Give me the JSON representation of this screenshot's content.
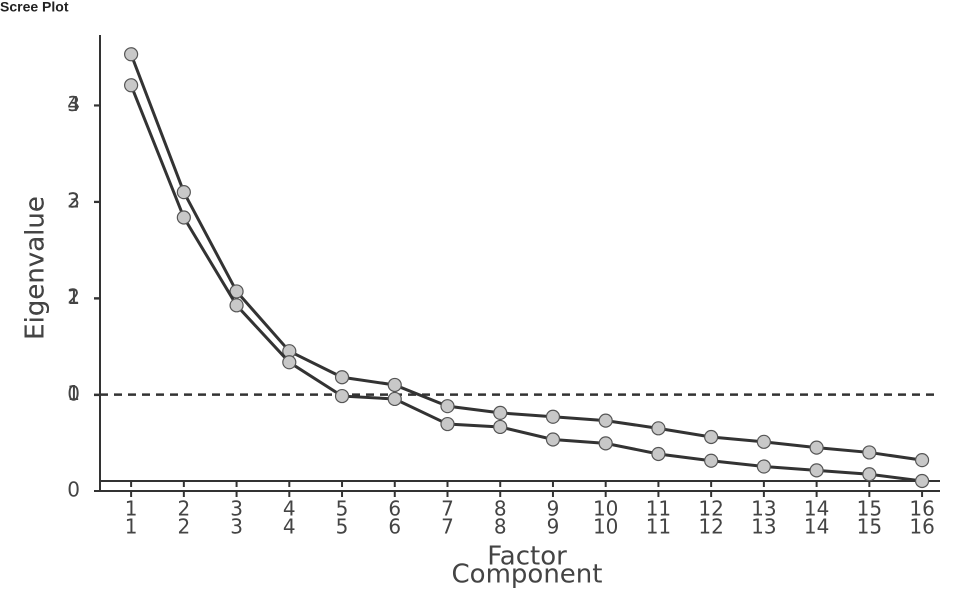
{
  "chart_data": [
    {
      "type": "line",
      "title": "Scree Plot",
      "x_label": "Component",
      "y_label": "Eigenvalue",
      "x": [
        1,
        2,
        3,
        4,
        5,
        6,
        7,
        8,
        9,
        10,
        11,
        12,
        13,
        14,
        15,
        16
      ],
      "series": [
        {
          "name": "Eigenvalue",
          "color": "#333333",
          "marker_color": "#c8c8c8",
          "values": [
            4.53,
            3.1,
            2.07,
            1.45,
            1.18,
            1.1,
            0.88,
            0.81,
            0.77,
            0.73,
            0.65,
            0.56,
            0.51,
            0.45,
            0.4,
            0.32
          ]
        }
      ],
      "xlim": [
        0.41,
        16.34
      ],
      "xticks": [
        1,
        2,
        3,
        4,
        5,
        6,
        7,
        8,
        9,
        10,
        11,
        12,
        13,
        14,
        15,
        16
      ],
      "ylim": [
        0,
        4.73
      ],
      "yticks": [
        0,
        1,
        2,
        3,
        4
      ],
      "hline": 1
    },
    {
      "type": "line",
      "x_label": "Factor",
      "y_label": "Eigenvalue",
      "x": [
        1,
        2,
        3,
        4,
        5,
        6,
        7,
        8,
        9,
        10,
        11,
        12,
        13,
        14,
        15,
        16
      ],
      "series": [
        {
          "name": "Eigenvalue",
          "color": "#333333",
          "marker_color": "#c8c8c8",
          "values": [
            3.21,
            1.84,
            0.93,
            0.34,
            -0.01,
            -0.04,
            -0.3,
            -0.33,
            -0.46,
            -0.5,
            -0.61,
            -0.68,
            -0.74,
            -0.78,
            -0.82,
            -0.89
          ]
        }
      ],
      "xlim": [
        0.41,
        16.34
      ],
      "xticks": [
        1,
        2,
        3,
        4,
        5,
        6,
        7,
        8,
        9,
        10,
        11,
        12,
        13,
        14,
        15,
        16
      ],
      "ylim": [
        -0.89,
        3.42
      ],
      "yticks": [
        0,
        1,
        2,
        3
      ]
    }
  ]
}
